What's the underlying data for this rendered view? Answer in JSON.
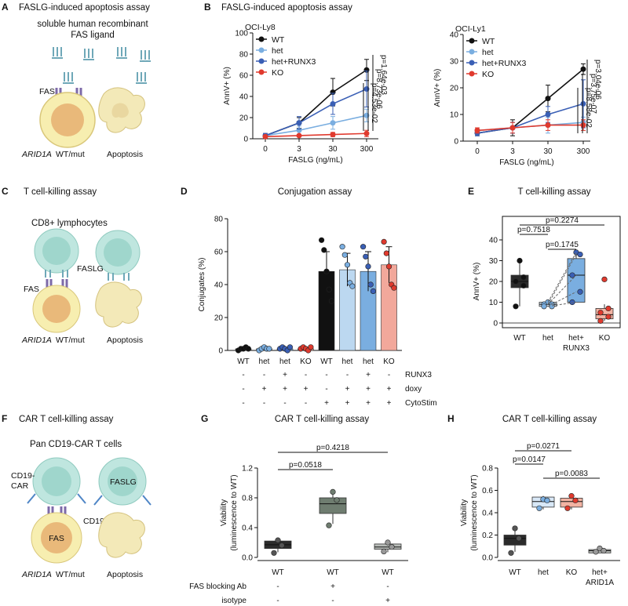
{
  "panels": {
    "A": {
      "letter": "A",
      "title": "FASLG-induced apoptosis assay",
      "ligand_line1": "soluble human recombinant",
      "ligand_line2": "FAS ligand",
      "fas": "FAS",
      "cell_label": "ARID1A",
      "cell_suffix": "WT/mut",
      "apoptosis": "Apoptosis"
    },
    "B": {
      "letter": "B",
      "title": "FASLG-induced apoptosis assay"
    },
    "C": {
      "letter": "C",
      "title": "T cell-killing assay",
      "cd8": "CD8+ lymphocytes",
      "faslg": "FASLG",
      "fas": "FAS",
      "cell_label": "ARID1A",
      "cell_suffix": "WT/mut",
      "apoptosis": "Apoptosis"
    },
    "D": {
      "letter": "D",
      "title": "Conjugation assay"
    },
    "E": {
      "letter": "E",
      "title": "T cell-killing assay"
    },
    "F": {
      "letter": "F",
      "title": "CAR T cell-killing assay",
      "subtitle": "Pan CD19-CAR T cells",
      "cd19car1": "CD19-",
      "cd19car2": "CAR",
      "faslg": "FASLG",
      "cd19": "CD19",
      "fas": "FAS",
      "cell_label": "ARID1A",
      "cell_suffix": "WT/mut",
      "apoptosis": "Apoptosis"
    },
    "G": {
      "letter": "G",
      "title": "CAR T cell-killing assay"
    },
    "H": {
      "letter": "H",
      "title": "CAR T cell-killing assay"
    }
  },
  "colors": {
    "WT": "#111111",
    "het": "#7aaee0",
    "hetRUNX3": "#3a5fb5",
    "KO": "#e03a2e"
  },
  "chart_data": [
    {
      "id": "B1",
      "type": "line",
      "title": "OCI-Ly8",
      "xlabel": "FASLG (ng/mL)",
      "ylabel": "AnnV+ (%)",
      "categories": [
        "0",
        "3",
        "30",
        "300"
      ],
      "yticks": [
        "0",
        "20",
        "40",
        "60",
        "80",
        "100"
      ],
      "ylim": [
        0,
        100
      ],
      "series": [
        {
          "name": "WT",
          "values": [
            3,
            15,
            44,
            65
          ],
          "err": [
            2,
            5,
            13,
            10
          ]
        },
        {
          "name": "het",
          "values": [
            3,
            8,
            15,
            22
          ],
          "err": [
            2,
            4,
            6,
            6
          ]
        },
        {
          "name": "het+RUNX3",
          "values": [
            3,
            15,
            33,
            47
          ],
          "err": [
            2,
            6,
            10,
            17
          ]
        },
        {
          "name": "KO",
          "values": [
            2,
            3,
            4,
            5
          ],
          "err": [
            1,
            1,
            2,
            3
          ]
        }
      ],
      "pvalues": [
        "p=1.64e-03",
        "p=8.73e-06",
        "p=4.53e-02"
      ]
    },
    {
      "id": "B2",
      "type": "line",
      "title": "OCI-Ly1",
      "xlabel": "FASLG (ng/mL)",
      "ylabel": "AnnV+ (%)",
      "categories": [
        "0",
        "3",
        "30",
        "300"
      ],
      "yticks": [
        "0",
        "10",
        "20",
        "30",
        "40"
      ],
      "ylim": [
        0,
        40
      ],
      "series": [
        {
          "name": "WT",
          "values": [
            3,
            5,
            16,
            27
          ],
          "err": [
            1,
            3,
            5,
            2
          ]
        },
        {
          "name": "het",
          "values": [
            4,
            5,
            6,
            7
          ],
          "err": [
            1,
            2,
            3,
            2
          ]
        },
        {
          "name": "het+RUNX3",
          "values": [
            3,
            5,
            10,
            14
          ],
          "err": [
            1,
            2,
            3,
            9
          ]
        },
        {
          "name": "KO",
          "values": [
            4,
            5,
            6,
            6
          ],
          "err": [
            1,
            2,
            2,
            2
          ]
        }
      ],
      "pvalues": [
        "p=3.04e-06",
        "p=3.75e-07",
        "p=8.58e-02"
      ]
    },
    {
      "id": "D",
      "type": "bar",
      "title": "Conjugation assay",
      "ylabel": "Conjugates (%)",
      "categories": [
        "WT",
        "het",
        "het",
        "KO",
        "WT",
        "het",
        "het",
        "KO"
      ],
      "values": [
        1,
        1,
        1,
        1,
        48,
        49,
        48,
        52
      ],
      "err": [
        0.5,
        0.5,
        0.5,
        0.5,
        12,
        10,
        12,
        11
      ],
      "points": [
        [
          0,
          1,
          1,
          2,
          1
        ],
        [
          0,
          1,
          2,
          1,
          1
        ],
        [
          1,
          2,
          1,
          0,
          2
        ],
        [
          1,
          2,
          1,
          0,
          2
        ],
        [
          67,
          61,
          48,
          37,
          30
        ],
        [
          63,
          58,
          52,
          41,
          39
        ],
        [
          63,
          57,
          51,
          40,
          36
        ],
        [
          66,
          59,
          51,
          40,
          38
        ]
      ],
      "bar_colors": [
        "#111111",
        "#bcd8f0",
        "#7aaee0",
        "#f2a89b",
        "#111111",
        "#bcd8f0",
        "#7aaee0",
        "#f2a89b"
      ],
      "yticks": [
        "0",
        "20",
        "40",
        "60",
        "80"
      ],
      "ylim": [
        0,
        80
      ],
      "condition_rows": [
        {
          "label": "RUNX3",
          "signs": [
            "-",
            "-",
            "+",
            "-",
            "-",
            "-",
            "+",
            "-"
          ]
        },
        {
          "label": "doxy",
          "signs": [
            "-",
            "+",
            "+",
            "+",
            "-",
            "+",
            "+",
            "+"
          ]
        },
        {
          "label": "CytoStim",
          "signs": [
            "-",
            "-",
            "-",
            "-",
            "+",
            "+",
            "+",
            "+"
          ]
        }
      ]
    },
    {
      "id": "E",
      "type": "box",
      "title": "T cell-killing assay",
      "ylabel": "AnnV+ (%)",
      "categories": [
        "WT",
        "het",
        "het+",
        "KO"
      ],
      "category_line2": [
        "",
        "",
        "RUNX3",
        ""
      ],
      "yticks": [
        "0",
        "10",
        "20",
        "30",
        "40"
      ],
      "ylim": [
        0,
        40
      ],
      "boxes": [
        {
          "q1": 17,
          "median": 20,
          "q3": 23,
          "min": 8,
          "max": 30,
          "points": [
            30,
            22,
            20,
            18,
            8
          ]
        },
        {
          "q1": 8,
          "median": 9,
          "q3": 10,
          "min": 8,
          "max": 10,
          "points": [
            10,
            9,
            9,
            8,
            8
          ]
        },
        {
          "q1": 10,
          "median": 23,
          "q3": 31,
          "min": 10,
          "max": 34,
          "points": [
            34,
            33,
            23,
            15,
            10
          ]
        },
        {
          "q1": 2,
          "median": 4,
          "q3": 7,
          "min": 1,
          "max": 9,
          "points": [
            21,
            7,
            5,
            3,
            1
          ]
        }
      ],
      "pvalues": [
        "p=0.2274",
        "p=0.7518",
        "p=0.1745"
      ]
    },
    {
      "id": "G",
      "type": "box",
      "title": "CAR T cell-killing assay",
      "ylabel": "Viability (luminescence to WT)",
      "categories": [
        "WT",
        "WT",
        "WT"
      ],
      "yticks": [
        "0.0",
        "0.4",
        "0.8",
        "1.2"
      ],
      "ylim": [
        0,
        1.2
      ],
      "boxes": [
        {
          "q1": 0.12,
          "median": 0.17,
          "q3": 0.22,
          "min": 0.07,
          "max": 0.22,
          "points": [
            0.23,
            0.16,
            0.06
          ]
        },
        {
          "q1": 0.59,
          "median": 0.72,
          "q3": 0.8,
          "min": 0.45,
          "max": 0.86,
          "points": [
            0.88,
            0.77,
            0.43
          ]
        },
        {
          "q1": 0.11,
          "median": 0.14,
          "q3": 0.18,
          "min": 0.07,
          "max": 0.2,
          "points": [
            0.2,
            0.14,
            0.08
          ]
        }
      ],
      "pvalues": [
        "p=0.4218",
        "p=0.0518"
      ],
      "condition_rows": [
        {
          "label": "FAS blocking Ab",
          "signs": [
            "-",
            "+",
            "-"
          ]
        },
        {
          "label": "isotype",
          "signs": [
            "-",
            "-",
            "+"
          ]
        }
      ]
    },
    {
      "id": "H",
      "type": "box",
      "title": "CAR T cell-killing assay",
      "ylabel": "Viability (luminescence to WT)",
      "categories": [
        "WT",
        "het",
        "KO",
        "het+"
      ],
      "category_line2": [
        "",
        "",
        "",
        "ARID1A"
      ],
      "yticks": [
        "0.0",
        "0.2",
        "0.4",
        "0.6",
        "0.8"
      ],
      "ylim": [
        0,
        0.8
      ],
      "boxes": [
        {
          "q1": 0.11,
          "median": 0.17,
          "q3": 0.2,
          "min": 0.05,
          "max": 0.25,
          "points": [
            0.26,
            0.17,
            0.04
          ]
        },
        {
          "q1": 0.45,
          "median": 0.5,
          "q3": 0.54,
          "min": 0.43,
          "max": 0.55,
          "points": [
            0.52,
            0.51,
            0.44
          ]
        },
        {
          "q1": 0.45,
          "median": 0.5,
          "q3": 0.53,
          "min": 0.43,
          "max": 0.55,
          "points": [
            0.55,
            0.51,
            0.44
          ]
        },
        {
          "q1": 0.04,
          "median": 0.06,
          "q3": 0.07,
          "min": 0.04,
          "max": 0.08,
          "points": [
            0.08,
            0.06,
            0.05
          ]
        }
      ],
      "pvalues": [
        "p=0.0271",
        "p=0.0147",
        "p=0.0083"
      ]
    }
  ]
}
